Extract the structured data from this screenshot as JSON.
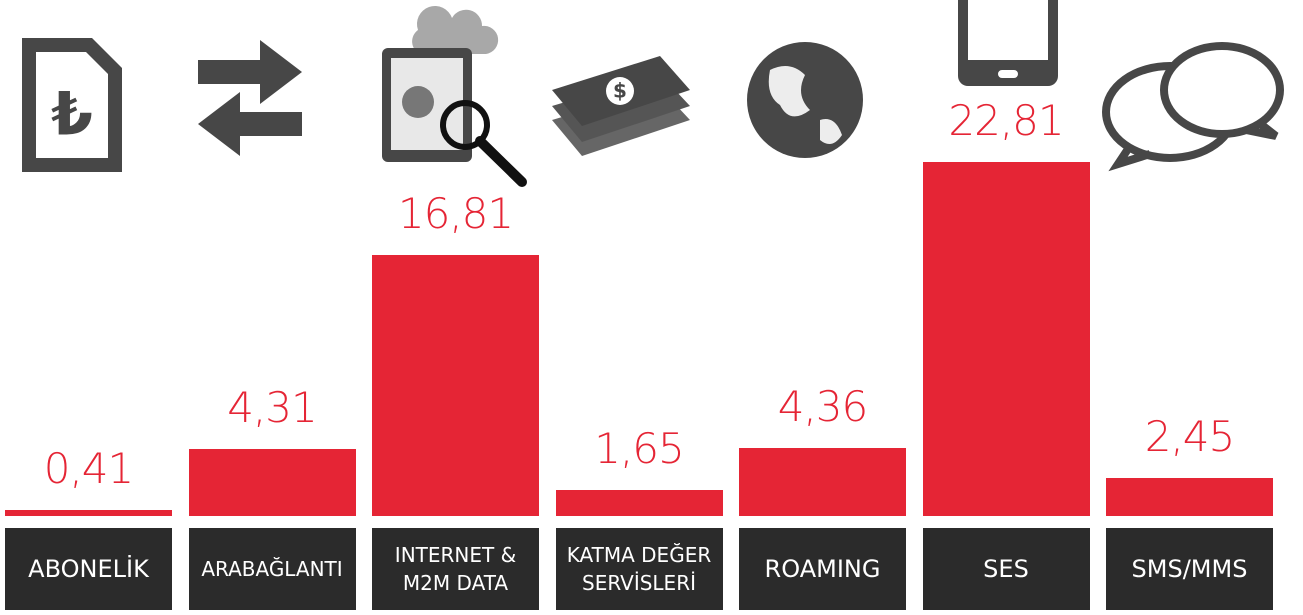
{
  "chart_data": {
    "type": "bar",
    "categories": [
      "ABONELİK",
      "ARABAĞLANTI",
      "INTERNET &\nM2M DATA",
      "KATMA DEĞER\nSERVİSLERİ",
      "ROAMING",
      "SES",
      "SMS/MMS"
    ],
    "values": [
      0.41,
      4.31,
      16.81,
      1.65,
      4.36,
      22.81,
      2.45
    ],
    "value_labels": [
      "0,41",
      "4,31",
      "16,81",
      "1,65",
      "4,36",
      "22,81",
      "2,45"
    ],
    "color": "#e52535"
  }
}
